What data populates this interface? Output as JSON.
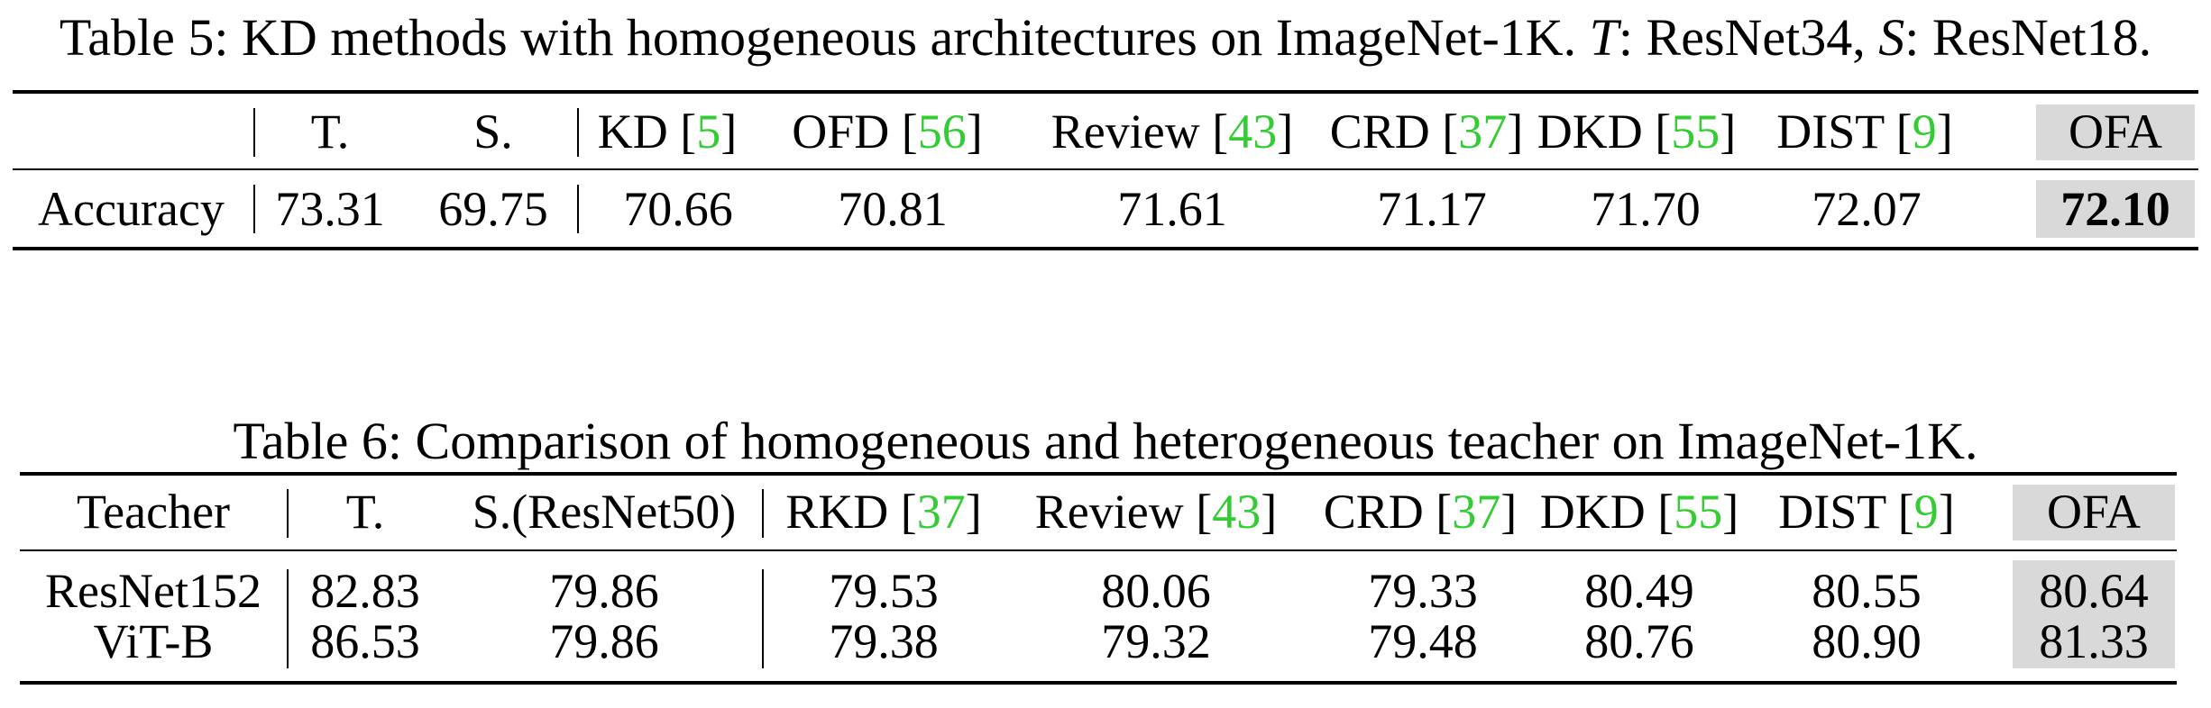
{
  "table5": {
    "caption": {
      "prefix": "Table 5: KD methods with homogeneous architectures on ImageNet-1K. ",
      "t": "T",
      "mid": ": ResNet34, ",
      "s": "S",
      "suffix": ": ResNet18."
    },
    "headers": [
      {
        "text": "T.",
        "cite": ""
      },
      {
        "text": "S.",
        "cite": ""
      },
      {
        "text": "KD [",
        "cite": "5"
      },
      {
        "text": "OFD [",
        "cite": "56"
      },
      {
        "text": "Review [",
        "cite": "43"
      },
      {
        "text": "CRD [",
        "cite": "37"
      },
      {
        "text": "DKD [",
        "cite": "55"
      },
      {
        "text": "DIST [",
        "cite": "9"
      },
      {
        "text": "OFA",
        "cite": ""
      }
    ],
    "row": {
      "label": "Accuracy",
      "values": [
        "73.31",
        "69.75",
        "70.66",
        "70.81",
        "71.61",
        "71.17",
        "71.70",
        "72.07",
        "72.10"
      ]
    }
  },
  "table6": {
    "caption": "Table 6: Comparison of homogeneous and heterogeneous teacher on ImageNet-1K.",
    "headers": [
      {
        "text": "Teacher",
        "cite": ""
      },
      {
        "text": "T.",
        "cite": ""
      },
      {
        "text": "S.(ResNet50)",
        "cite": ""
      },
      {
        "text": "RKD [",
        "cite": "37"
      },
      {
        "text": "Review [",
        "cite": "43"
      },
      {
        "text": "CRD [",
        "cite": "37"
      },
      {
        "text": "DKD [",
        "cite": "55"
      },
      {
        "text": "DIST [",
        "cite": "9"
      },
      {
        "text": "OFA",
        "cite": ""
      }
    ],
    "rows": [
      {
        "label": "ResNet152",
        "values": [
          "82.83",
          "79.86",
          "79.53",
          "80.06",
          "79.33",
          "80.49",
          "80.55",
          "80.64"
        ]
      },
      {
        "label": "ViT-B",
        "values": [
          "86.53",
          "79.86",
          "79.38",
          "79.32",
          "79.48",
          "80.76",
          "80.90",
          "81.33"
        ]
      }
    ]
  }
}
